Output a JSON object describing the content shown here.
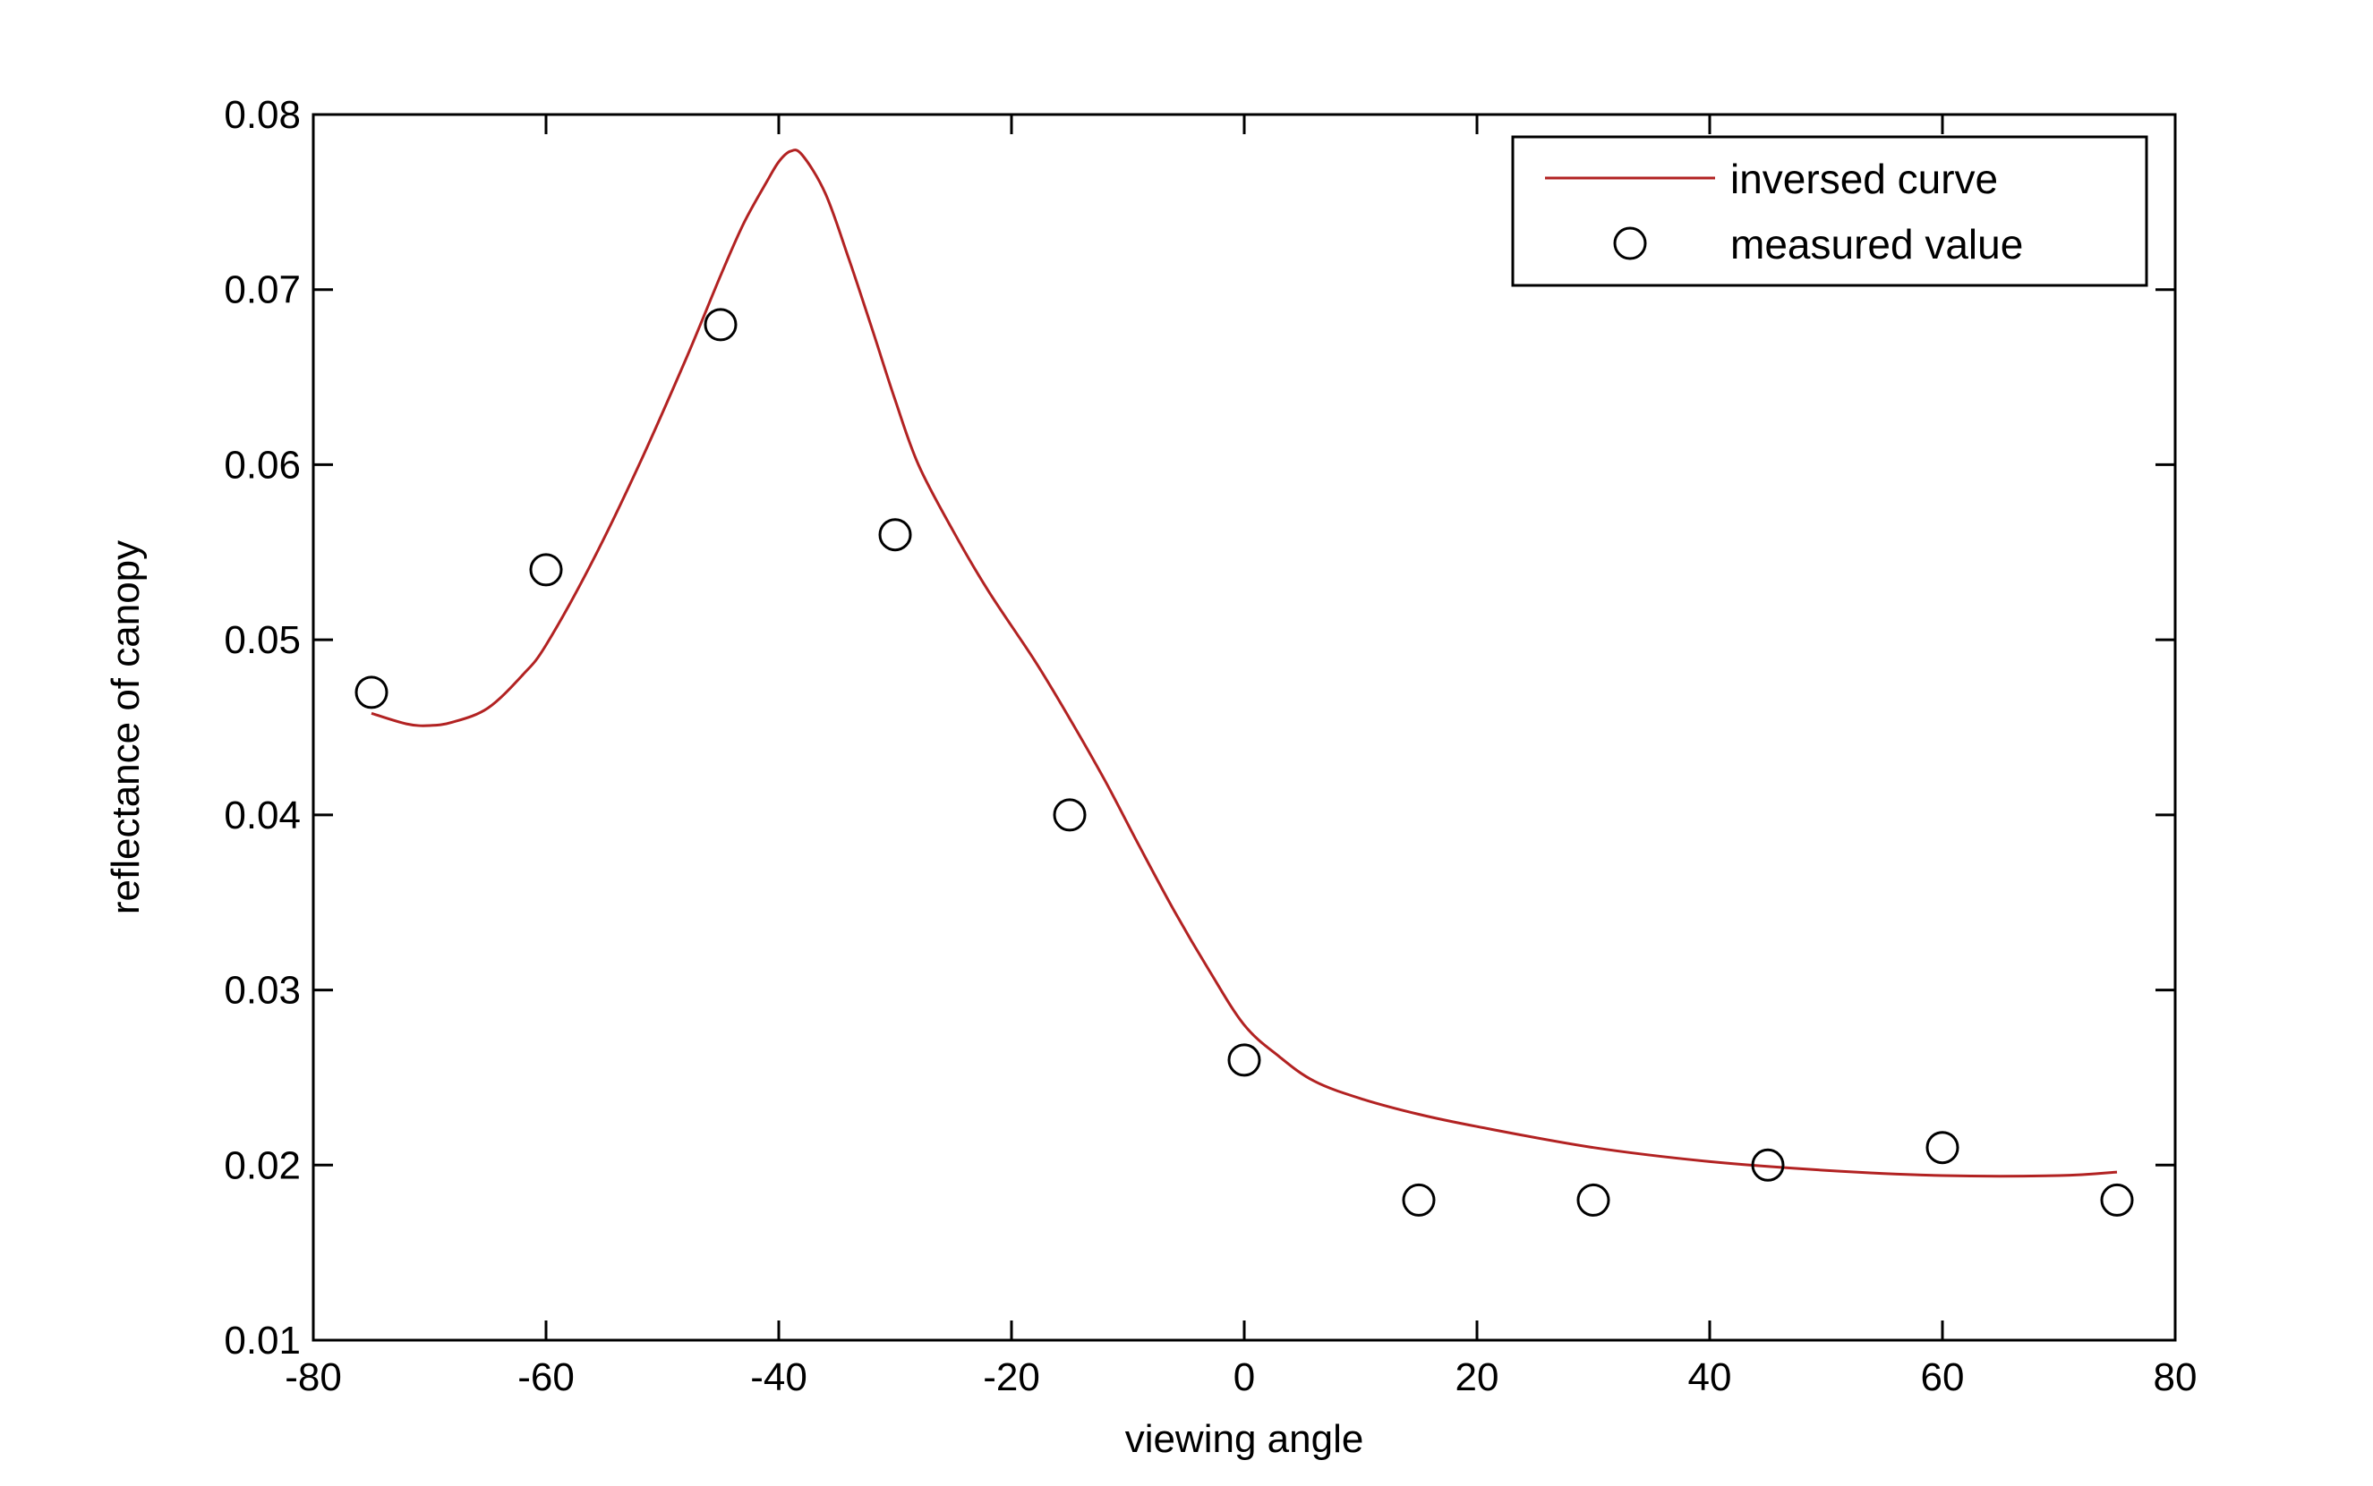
{
  "chart_data": {
    "type": "line",
    "title": "",
    "xlabel": "viewing angle",
    "ylabel": "reflectance of canopy",
    "xlim": [
      -80,
      80
    ],
    "ylim": [
      0.01,
      0.08
    ],
    "xticks": [
      -80,
      -60,
      -40,
      -20,
      0,
      20,
      40,
      60,
      80
    ],
    "yticks": [
      0.01,
      0.02,
      0.03,
      0.04,
      0.05,
      0.06,
      0.07,
      0.08
    ],
    "xtick_labels": [
      "-80",
      "-60",
      "-40",
      "-20",
      "0",
      "20",
      "40",
      "60",
      "80"
    ],
    "ytick_labels": [
      "0.01",
      "0.02",
      "0.03",
      "0.04",
      "0.05",
      "0.06",
      "0.07",
      "0.08"
    ],
    "grid": false,
    "legend_position": "top-right",
    "series": [
      {
        "name": "inversed curve",
        "style": "line",
        "color": "#b22222",
        "x": [
          -75,
          -72,
          -70,
          -68,
          -65,
          -62,
          -60,
          -56,
          -52,
          -48,
          -45,
          -43,
          -41,
          -40,
          -39,
          -38,
          -36,
          -34,
          -32,
          -30,
          -28,
          -25,
          -22,
          -18,
          -15,
          -12,
          -9,
          -6,
          -3,
          0,
          3,
          6,
          10,
          15,
          20,
          30,
          40,
          50,
          60,
          70,
          75
        ],
        "y": [
          0.0458,
          0.0452,
          0.0451,
          0.0453,
          0.0461,
          0.048,
          0.0497,
          0.0545,
          0.06,
          0.066,
          0.0708,
          0.0738,
          0.0762,
          0.0773,
          0.0779,
          0.0777,
          0.0755,
          0.0718,
          0.0678,
          0.0637,
          0.06,
          0.0562,
          0.0528,
          0.0488,
          0.0455,
          0.042,
          0.0382,
          0.0345,
          0.0311,
          0.028,
          0.0262,
          0.0248,
          0.0238,
          0.0229,
          0.0222,
          0.021,
          0.0202,
          0.0197,
          0.0194,
          0.0194,
          0.0196
        ]
      },
      {
        "name": "measured value",
        "style": "marker",
        "marker": "circle",
        "color": "#000000",
        "x": [
          -75,
          -60,
          -45,
          -30,
          -15,
          0,
          15,
          30,
          45,
          60,
          75
        ],
        "y": [
          0.047,
          0.054,
          0.068,
          0.056,
          0.04,
          0.026,
          0.018,
          0.018,
          0.02,
          0.021,
          0.018
        ]
      }
    ]
  }
}
